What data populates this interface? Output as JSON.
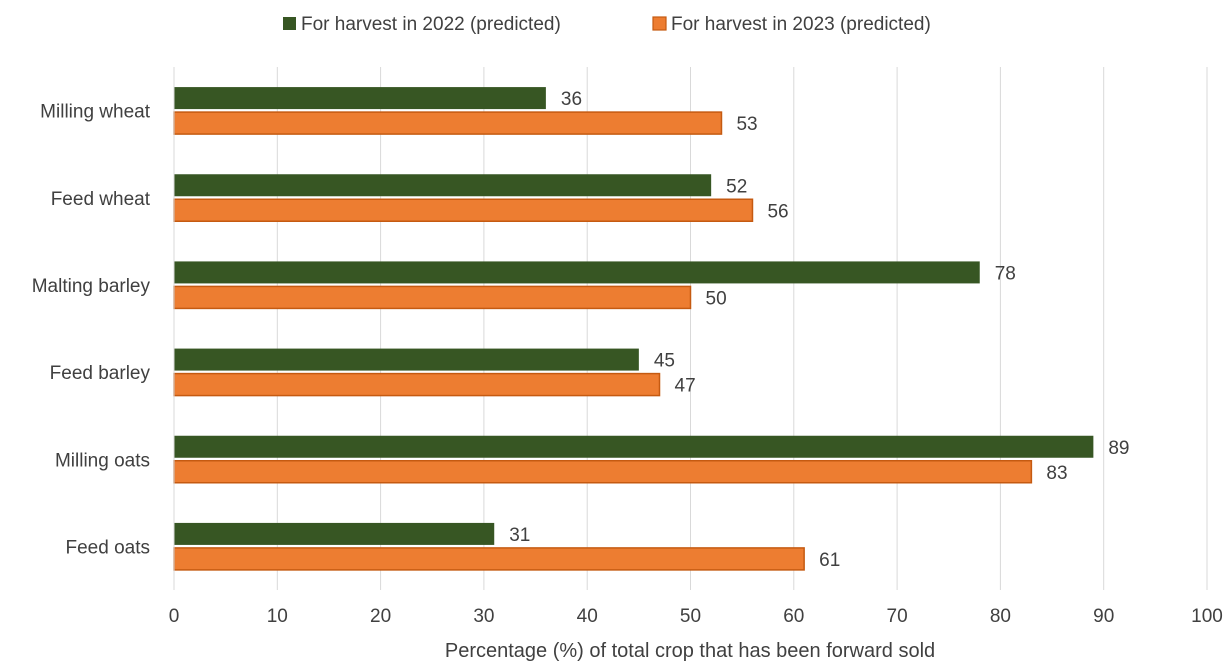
{
  "chart_data": {
    "type": "bar",
    "orientation": "horizontal",
    "title": "",
    "xlabel": "Percentage (%) of total crop that has been forward sold",
    "ylabel": "",
    "xlim": [
      0,
      100
    ],
    "x_ticks": [
      0,
      10,
      20,
      30,
      40,
      50,
      60,
      70,
      80,
      90,
      100
    ],
    "grid": "vertical gridlines",
    "legend_position": "top-center",
    "categories": [
      "Milling wheat",
      "Feed wheat",
      "Malting barley",
      "Feed barley",
      "Milling oats",
      "Feed oats"
    ],
    "series": [
      {
        "name": "For harvest in 2022 (predicted)",
        "color": "#375623",
        "values": [
          36,
          52,
          78,
          45,
          89,
          31
        ]
      },
      {
        "name": "For harvest in 2023 (predicted)",
        "color": "#ED7D31",
        "values": [
          53,
          56,
          50,
          47,
          83,
          61
        ]
      }
    ]
  }
}
